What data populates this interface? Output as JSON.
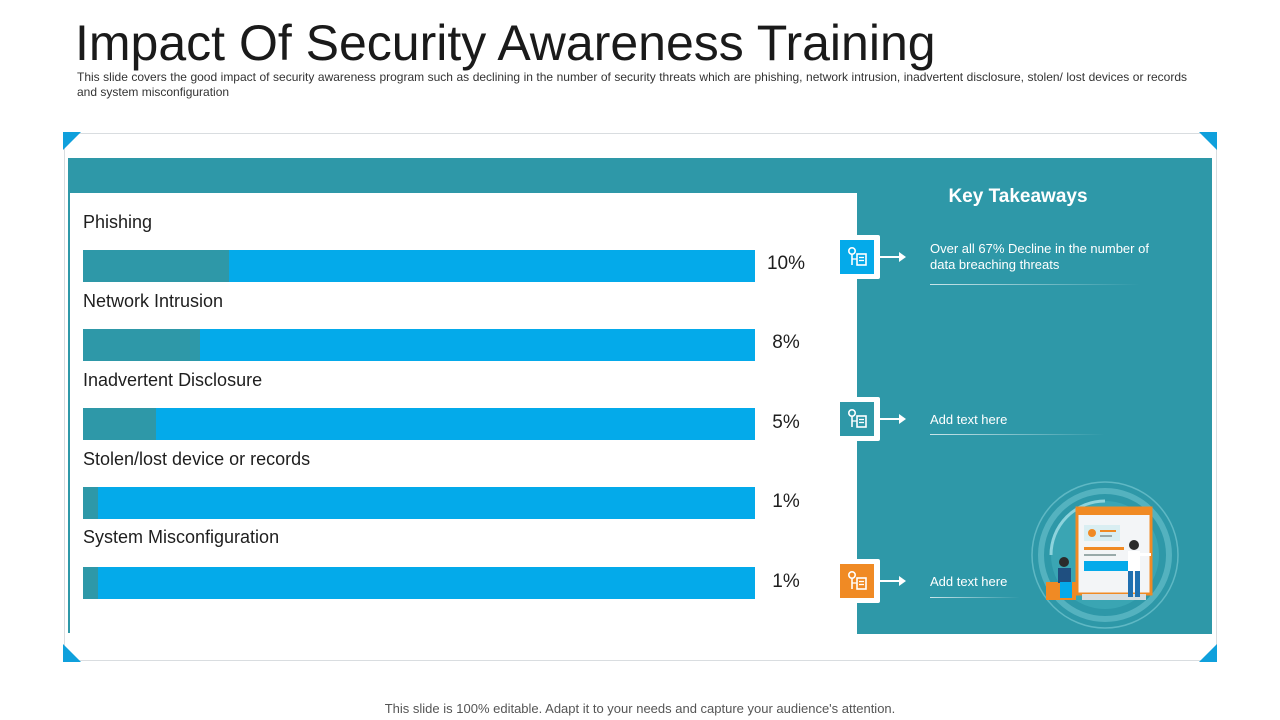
{
  "page": {
    "title": "Impact Of Security Awareness Training",
    "subtitle": "This slide covers the good impact of security awareness program  such as declining in the number of security threats which are phishing, network intrusion, inadvertent  disclosure, stolen/ lost devices  or records and system misconfiguration",
    "footer": "This slide is 100% editable. Adapt it to your needs and capture your audience's attention."
  },
  "colors": {
    "accent_teal": "#2e98a8",
    "accent_blue": "#04aaea",
    "accent_orange": "#f08a24"
  },
  "chart_data": {
    "type": "bar",
    "orientation": "horizontal",
    "categories": [
      "Phishing",
      "Network Intrusion",
      "Inadvertent Disclosure",
      "Stolen/lost device or records",
      "System Misconfiguration"
    ],
    "values": [
      10,
      8,
      5,
      1,
      1
    ],
    "value_labels": [
      "10%",
      "8%",
      "5%",
      "1%",
      "1%"
    ],
    "unit": "%",
    "title": "",
    "xlabel": "",
    "ylabel": ""
  },
  "takeaways": {
    "title": "Key Takeaways",
    "items": [
      {
        "text": "Over all 67% Decline in the number of data breaching threats",
        "icon": "data-network-icon",
        "icon_color": "#04aaea"
      },
      {
        "text": "Add text here",
        "icon": "data-network-icon",
        "icon_color": "#2e98a8"
      },
      {
        "text": "Add text here",
        "icon": "data-network-icon",
        "icon_color": "#f08a24"
      }
    ]
  },
  "illustration": {
    "icon": "people-at-computer-screen-illustration"
  }
}
